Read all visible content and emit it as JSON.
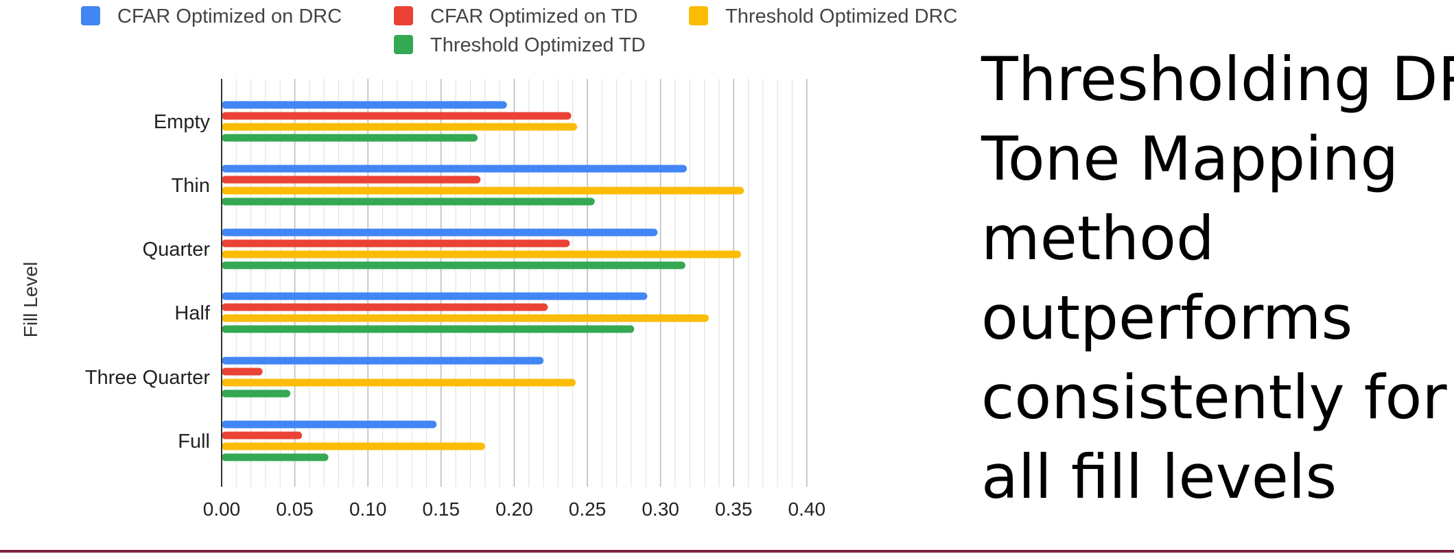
{
  "chart_data": {
    "type": "bar",
    "orientation": "horizontal",
    "ylabel": "Fill Level",
    "xlabel": "",
    "categories": [
      "Empty",
      "Thin",
      "Quarter",
      "Half",
      "Three Quarter",
      "Full"
    ],
    "xlim": [
      0,
      0.4
    ],
    "x_ticks": [
      "0.00",
      "0.05",
      "0.10",
      "0.15",
      "0.20",
      "0.25",
      "0.30",
      "0.35",
      "0.40"
    ],
    "grid": true,
    "legend_position": "top",
    "series": [
      {
        "name": "CFAR Optimized on DRC",
        "color": "#4285f4",
        "values": [
          0.195,
          0.318,
          0.298,
          0.291,
          0.22,
          0.147
        ]
      },
      {
        "name": "CFAR Optimized on TD",
        "color": "#ea4335",
        "values": [
          0.239,
          0.177,
          0.238,
          0.223,
          0.028,
          0.055
        ]
      },
      {
        "name": "Threshold Optimized DRC",
        "color": "#fbbc04",
        "values": [
          0.243,
          0.357,
          0.355,
          0.333,
          0.242,
          0.18
        ]
      },
      {
        "name": "Threshold Optimized TD",
        "color": "#34a853",
        "values": [
          0.175,
          0.255,
          0.317,
          0.282,
          0.047,
          0.073
        ]
      }
    ]
  },
  "callout": {
    "lines": [
      "Thresholding DRC",
      "Tone Mapping",
      "method",
      "outperforms",
      "consistently for",
      "all fill levels"
    ]
  }
}
